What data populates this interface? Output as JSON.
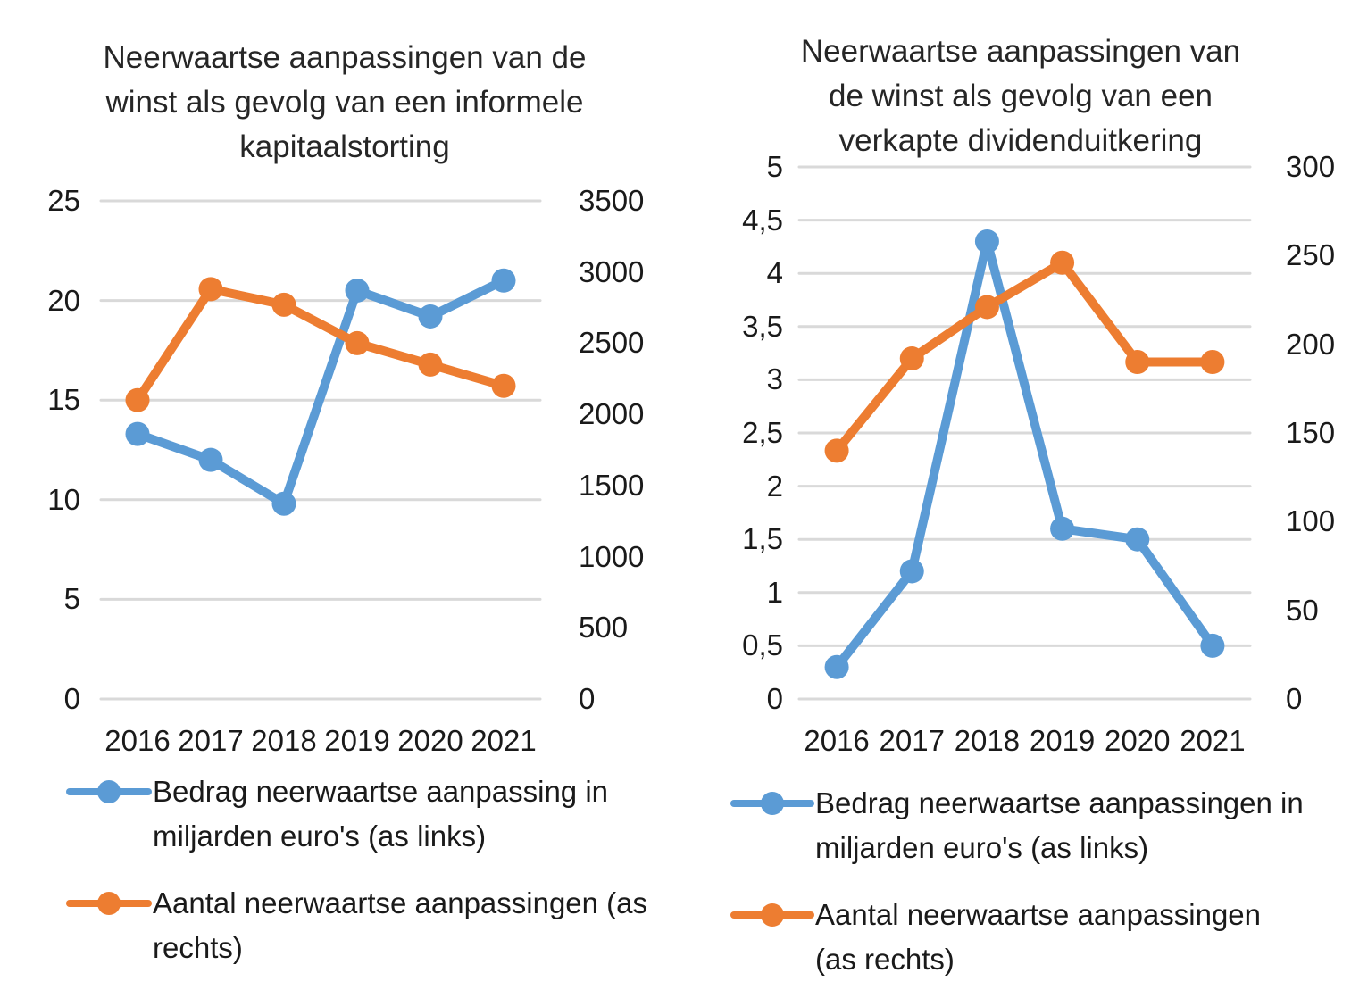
{
  "chart_data": [
    {
      "type": "line",
      "title": "Neerwaartse aanpassingen van de winst als gevolg van een informele kapitaalstorting",
      "title_lines": [
        "Neerwaartse aanpassingen van de",
        "winst als gevolg van een informele",
        "kapitaalstorting"
      ],
      "categories": [
        "2016",
        "2017",
        "2018",
        "2019",
        "2020",
        "2021"
      ],
      "left_axis": {
        "min": 0,
        "max": 25,
        "tick_values": [
          0,
          5,
          10,
          15,
          20,
          25
        ],
        "tick_labels": [
          "0",
          "5",
          "10",
          "15",
          "20",
          "25"
        ]
      },
      "right_axis": {
        "min": 0,
        "max": 3500,
        "tick_values": [
          0,
          500,
          1000,
          1500,
          2000,
          2500,
          3000,
          3500
        ],
        "tick_labels": [
          "0",
          "500",
          "1000",
          "1500",
          "2000",
          "2500",
          "3000",
          "3500"
        ]
      },
      "grid": true,
      "legend_position": "bottom",
      "series": [
        {
          "name": "Bedrag neerwaartse aanpassing in miljarden euro's (as links)",
          "legend_lines": [
            "Bedrag neerwaartse aanpassing in",
            "miljarden euro's (as links)"
          ],
          "axis": "left",
          "color": "#5B9BD5",
          "values": [
            13.3,
            12,
            9.8,
            20.5,
            19.2,
            21
          ]
        },
        {
          "name": "Aantal neerwaartse aanpassingen (as rechts)",
          "legend_lines": [
            "Aantal neerwaartse aanpassingen (as",
            "rechts)"
          ],
          "axis": "right",
          "color": "#ED7D31",
          "values": [
            2100,
            2880,
            2770,
            2500,
            2350,
            2200
          ]
        }
      ]
    },
    {
      "type": "line",
      "title": "Neerwaartse aanpassingen van de winst als gevolg van een verkapte dividenduitkering",
      "title_lines": [
        "Neerwaartse aanpassingen van",
        "de winst als gevolg van een",
        "verkapte dividenduitkering"
      ],
      "categories": [
        "2016",
        "2017",
        "2018",
        "2019",
        "2020",
        "2021"
      ],
      "left_axis": {
        "min": 0,
        "max": 5,
        "tick_values": [
          0,
          0.5,
          1,
          1.5,
          2,
          2.5,
          3,
          3.5,
          4,
          4.5,
          5
        ],
        "tick_labels": [
          "0",
          "0,5",
          "1",
          "1,5",
          "2",
          "2,5",
          "3",
          "3,5",
          "4",
          "4,5",
          "5"
        ]
      },
      "right_axis": {
        "min": 0,
        "max": 300,
        "tick_values": [
          0,
          50,
          100,
          150,
          200,
          250,
          300
        ],
        "tick_labels": [
          "0",
          "50",
          "100",
          "150",
          "200",
          "250",
          "300"
        ]
      },
      "grid": true,
      "legend_position": "bottom",
      "series": [
        {
          "name": "Bedrag neerwaartse aanpassingen in miljarden euro's (as links)",
          "legend_lines": [
            "Bedrag neerwaartse aanpassingen in",
            "miljarden euro's (as links)"
          ],
          "axis": "left",
          "color": "#5B9BD5",
          "values": [
            0.3,
            1.2,
            4.3,
            1.6,
            1.5,
            0.5
          ]
        },
        {
          "name": "Aantal neerwaartse aanpassingen (as rechts)",
          "legend_lines": [
            "Aantal neerwaartse aanpassingen",
            "(as rechts)"
          ],
          "axis": "right",
          "color": "#ED7D31",
          "values": [
            140,
            192,
            221,
            246,
            190,
            190
          ]
        }
      ]
    }
  ],
  "colors": {
    "series_blue": "#5B9BD5",
    "series_orange": "#ED7D31",
    "gridline": "#D9D9D9",
    "text": "#1f1f1f"
  }
}
